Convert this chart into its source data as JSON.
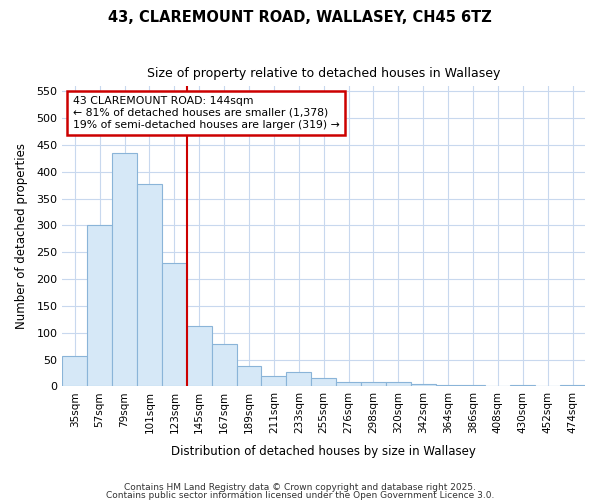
{
  "title": "43, CLAREMOUNT ROAD, WALLASEY, CH45 6TZ",
  "subtitle": "Size of property relative to detached houses in Wallasey",
  "xlabel": "Distribution of detached houses by size in Wallasey",
  "ylabel": "Number of detached properties",
  "bar_color": "#d6e8f7",
  "bar_edge_color": "#8ab4d8",
  "background_color": "#ffffff",
  "grid_color": "#c8d8ee",
  "categories": [
    "35sqm",
    "57sqm",
    "79sqm",
    "101sqm",
    "123sqm",
    "145sqm",
    "167sqm",
    "189sqm",
    "211sqm",
    "233sqm",
    "255sqm",
    "276sqm",
    "298sqm",
    "320sqm",
    "342sqm",
    "364sqm",
    "386sqm",
    "408sqm",
    "430sqm",
    "452sqm",
    "474sqm"
  ],
  "values": [
    57,
    300,
    435,
    378,
    230,
    113,
    79,
    38,
    20,
    27,
    16,
    8,
    9,
    8,
    4,
    3,
    3,
    0,
    2,
    0,
    2
  ],
  "property_line_index": 5,
  "property_line_color": "#cc0000",
  "annotation_line1": "43 CLAREMOUNT ROAD: 144sqm",
  "annotation_line2": "← 81% of detached houses are smaller (1,378)",
  "annotation_line3": "19% of semi-detached houses are larger (319) →",
  "annotation_box_color": "#cc0000",
  "ylim": [
    0,
    560
  ],
  "yticks": [
    0,
    50,
    100,
    150,
    200,
    250,
    300,
    350,
    400,
    450,
    500,
    550
  ],
  "footer1": "Contains HM Land Registry data © Crown copyright and database right 2025.",
  "footer2": "Contains public sector information licensed under the Open Government Licence 3.0."
}
